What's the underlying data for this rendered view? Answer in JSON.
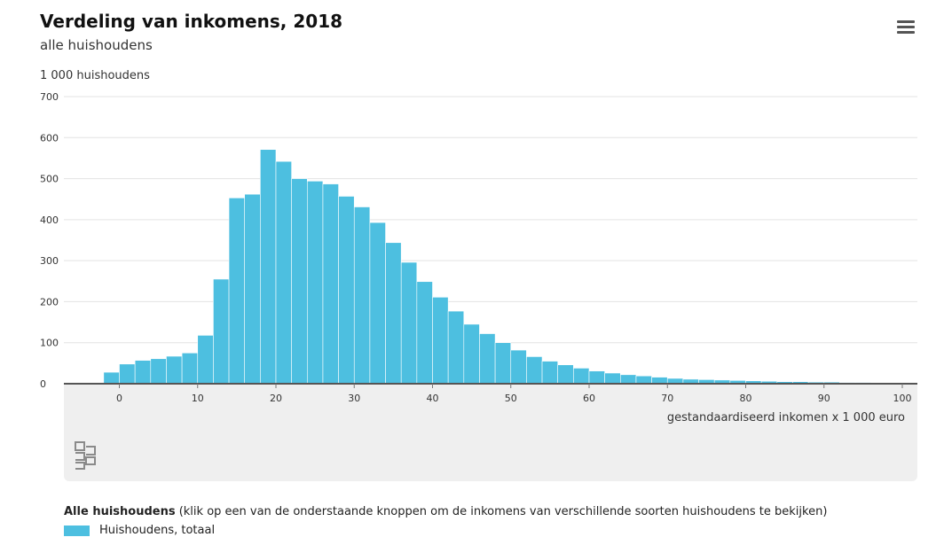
{
  "header": {
    "title": "Verdeling van inkomens, 2018",
    "subtitle": "alle huishoudens",
    "menu_icon": "hamburger-menu-icon"
  },
  "colors": {
    "bar": "#4dbfe0",
    "grid": "#e3e3e3",
    "panel": "#efefef"
  },
  "logo": {
    "icon": "cbs-logo-icon"
  },
  "legend": {
    "header_bold": "Alle huishoudens",
    "header_rest": " (klik op een van de onderstaande knoppen om de inkomens van verschillende soorten huishoudens te bekijken)",
    "items": [
      {
        "label": "Huishoudens, totaal"
      }
    ]
  },
  "chart_data": {
    "type": "bar",
    "ylabel": "1 000 huishoudens",
    "xlabel": "gestandaardiseerd inkomen x 1 000 euro",
    "ylim": [
      0,
      700
    ],
    "yticks": [
      0,
      100,
      200,
      300,
      400,
      500,
      600,
      700
    ],
    "xticks": [
      0,
      10,
      20,
      30,
      40,
      50,
      60,
      70,
      80,
      90,
      100
    ],
    "bin_width": 2,
    "grid": true,
    "series": [
      {
        "name": "Huishoudens, totaal",
        "bins": [
          {
            "x": -2,
            "value": 28
          },
          {
            "x": 0,
            "value": 48
          },
          {
            "x": 2,
            "value": 57
          },
          {
            "x": 4,
            "value": 61
          },
          {
            "x": 6,
            "value": 67
          },
          {
            "x": 8,
            "value": 75
          },
          {
            "x": 10,
            "value": 118
          },
          {
            "x": 12,
            "value": 255
          },
          {
            "x": 14,
            "value": 453
          },
          {
            "x": 16,
            "value": 462
          },
          {
            "x": 18,
            "value": 571
          },
          {
            "x": 20,
            "value": 542
          },
          {
            "x": 22,
            "value": 500
          },
          {
            "x": 24,
            "value": 494
          },
          {
            "x": 26,
            "value": 487
          },
          {
            "x": 28,
            "value": 457
          },
          {
            "x": 30,
            "value": 431
          },
          {
            "x": 32,
            "value": 393
          },
          {
            "x": 34,
            "value": 344
          },
          {
            "x": 36,
            "value": 296
          },
          {
            "x": 38,
            "value": 249
          },
          {
            "x": 40,
            "value": 211
          },
          {
            "x": 42,
            "value": 177
          },
          {
            "x": 44,
            "value": 145
          },
          {
            "x": 46,
            "value": 122
          },
          {
            "x": 48,
            "value": 100
          },
          {
            "x": 50,
            "value": 82
          },
          {
            "x": 52,
            "value": 66
          },
          {
            "x": 54,
            "value": 55
          },
          {
            "x": 56,
            "value": 46
          },
          {
            "x": 58,
            "value": 38
          },
          {
            "x": 60,
            "value": 31
          },
          {
            "x": 62,
            "value": 26
          },
          {
            "x": 64,
            "value": 22
          },
          {
            "x": 66,
            "value": 19
          },
          {
            "x": 68,
            "value": 16
          },
          {
            "x": 70,
            "value": 13
          },
          {
            "x": 72,
            "value": 11
          },
          {
            "x": 74,
            "value": 10
          },
          {
            "x": 76,
            "value": 9
          },
          {
            "x": 78,
            "value": 8
          },
          {
            "x": 80,
            "value": 7
          },
          {
            "x": 82,
            "value": 6
          },
          {
            "x": 84,
            "value": 5
          },
          {
            "x": 86,
            "value": 5
          },
          {
            "x": 88,
            "value": 4
          },
          {
            "x": 90,
            "value": 4
          },
          {
            "x": 92,
            "value": 3
          },
          {
            "x": 94,
            "value": 3
          },
          {
            "x": 96,
            "value": 2
          },
          {
            "x": 98,
            "value": 2
          }
        ]
      }
    ]
  }
}
